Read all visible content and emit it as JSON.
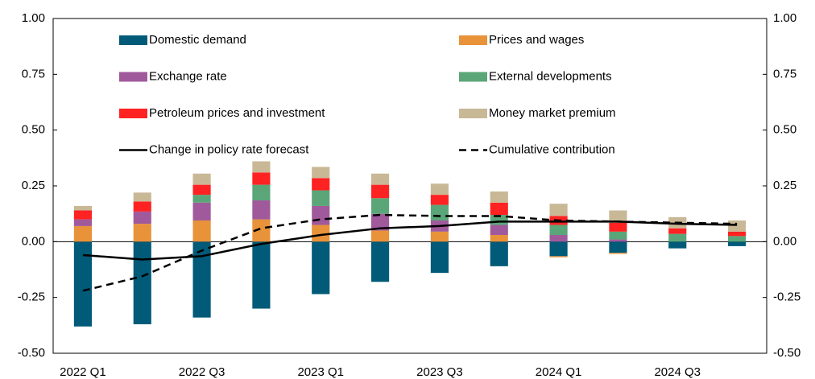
{
  "chart_data": {
    "type": "bar",
    "stacked": true,
    "categories": [
      "2022 Q1",
      null,
      "2022 Q3",
      null,
      "2023 Q1",
      null,
      "2023 Q3",
      null,
      "2024 Q1",
      null,
      "2024 Q3",
      null
    ],
    "series": [
      {
        "name": "Domestic demand",
        "color": "#005a78",
        "values": [
          -0.38,
          -0.37,
          -0.34,
          -0.3,
          -0.235,
          -0.18,
          -0.14,
          -0.11,
          -0.065,
          -0.05,
          -0.03,
          -0.02
        ]
      },
      {
        "name": "Prices and wages",
        "color": "#e8923a",
        "values": [
          0.07,
          0.08,
          0.095,
          0.1,
          0.075,
          0.05,
          0.045,
          0.03,
          -0.005,
          -0.005,
          0,
          0
        ]
      },
      {
        "name": "Exchange rate",
        "color": "#a05a9c",
        "values": [
          0.03,
          0.055,
          0.08,
          0.085,
          0.085,
          0.075,
          0.05,
          0.045,
          0.03,
          0.01,
          0,
          0
        ]
      },
      {
        "name": "External developments",
        "color": "#5aa678",
        "values": [
          0,
          0,
          0.035,
          0.07,
          0.07,
          0.07,
          0.07,
          0.045,
          0.045,
          0.035,
          0.035,
          0.025
        ]
      },
      {
        "name": "Petroleum prices and investment",
        "color": "#ff2222",
        "values": [
          0.04,
          0.045,
          0.045,
          0.055,
          0.055,
          0.06,
          0.045,
          0.055,
          0.04,
          0.04,
          0.025,
          0.02
        ]
      },
      {
        "name": "Money market premium",
        "color": "#c8b896",
        "values": [
          0.02,
          0.04,
          0.05,
          0.05,
          0.05,
          0.05,
          0.05,
          0.05,
          0.055,
          0.055,
          0.05,
          0.05
        ]
      },
      {
        "name": "Change in policy rate forecast",
        "type": "line",
        "color": "#000000",
        "values": [
          -0.06,
          -0.08,
          -0.065,
          -0.01,
          0.03,
          0.06,
          0.07,
          0.09,
          0.09,
          0.09,
          0.08,
          0.075
        ]
      },
      {
        "name": "Cumulative contribution",
        "type": "line",
        "dash": true,
        "color": "#000000",
        "values": [
          -0.22,
          -0.155,
          -0.04,
          0.06,
          0.1,
          0.12,
          0.115,
          0.115,
          0.095,
          0.09,
          0.085,
          0.08
        ]
      }
    ],
    "ylim": [
      -0.5,
      1.0
    ],
    "yticks": [
      {
        "value": 1.0,
        "label": "1.00"
      },
      {
        "value": 0.75,
        "label": "0.75"
      },
      {
        "value": 0.5,
        "label": "0.50"
      },
      {
        "value": 0.25,
        "label": "0.25"
      },
      {
        "value": 0,
        "label": "0.00"
      },
      {
        "value": -0.25,
        "label": "-0.25"
      },
      {
        "value": -0.5,
        "label": "-0.50"
      }
    ],
    "y2lim": [
      -0.5,
      1.0
    ],
    "y2ticks": [
      {
        "value": 1.0,
        "label": "1.00"
      },
      {
        "value": 0.75,
        "label": "0.75"
      },
      {
        "value": 0.5,
        "label": "0.50"
      },
      {
        "value": 0.25,
        "label": "0.25"
      },
      {
        "value": 0,
        "label": "0.00"
      },
      {
        "value": -0.25,
        "label": "-0.25"
      },
      {
        "value": -0.5,
        "label": "-0.50"
      }
    ]
  }
}
